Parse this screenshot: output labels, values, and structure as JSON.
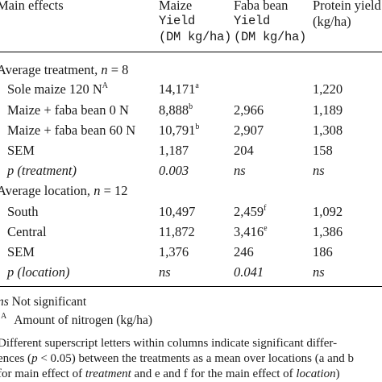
{
  "header": {
    "col1": "Main effects",
    "col2_line1": "Maize",
    "col2_line2": "Yield",
    "col2_line3": "(DM kg/ha)",
    "col3_line1": "Faba bean",
    "col3_line2": "Yield",
    "col3_line3": "(DM kg/ha)",
    "col4_line1": "Protein yield",
    "col4_line2": "(kg/ha)"
  },
  "section1": {
    "title": "Average treatment, ",
    "n_var": "n",
    "n_value": " = 8",
    "rows": [
      {
        "label": "Sole maize 120 N",
        "label_sup": "A",
        "maize": "14,171",
        "maize_sup": "a",
        "faba": "",
        "faba_sup": "",
        "protein": "1,220"
      },
      {
        "label": "Maize + faba bean 0 N",
        "label_sup": "",
        "maize": "8,888",
        "maize_sup": "b",
        "faba": "2,966",
        "faba_sup": "",
        "protein": "1,189"
      },
      {
        "label": "Maize + faba bean 60 N",
        "label_sup": "",
        "maize": "10,791",
        "maize_sup": "b",
        "faba": "2,907",
        "faba_sup": "",
        "protein": "1,308"
      },
      {
        "label": "SEM",
        "label_sup": "",
        "maize": "1,187",
        "maize_sup": "",
        "faba": "204",
        "faba_sup": "",
        "protein": "158"
      }
    ],
    "p_row": {
      "label": "p (treatment)",
      "maize": "0.003",
      "faba": "ns",
      "protein": "ns"
    }
  },
  "section2": {
    "title": "Average location, ",
    "n_var": "n",
    "n_value": " = 12",
    "rows": [
      {
        "label": "South",
        "maize": "10,497",
        "faba": "2,459",
        "faba_sup": "f",
        "protein": "1,092"
      },
      {
        "label": "Central",
        "maize": "11,872",
        "faba": "3,416",
        "faba_sup": "e",
        "protein": "1,386"
      },
      {
        "label": "SEM",
        "maize": "1,376",
        "faba": "246",
        "faba_sup": "",
        "protein": "186"
      }
    ],
    "p_row": {
      "label": "p (location)",
      "maize": "ns",
      "faba": "0.041",
      "protein": "ns"
    }
  },
  "footnotes": {
    "ns_abbr": "ns",
    "ns_text": " Not significant",
    "a_sup": "A",
    "a_text": "Amount of nitrogen (kg/ha)",
    "para_line1": "Different superscript letters within columns indicate significant differ-",
    "para_line2_pre": "ences (",
    "para_line2_p": "p",
    "para_line2_mid": " < 0.05) between the treatments as a mean over locations (a and b",
    "para_line3_pre": "for main effect of ",
    "para_line3_treatment": "treatment",
    "para_line3_mid": " and e and f for the main effect of ",
    "para_line3_location": "location",
    "para_line3_post": ")"
  }
}
